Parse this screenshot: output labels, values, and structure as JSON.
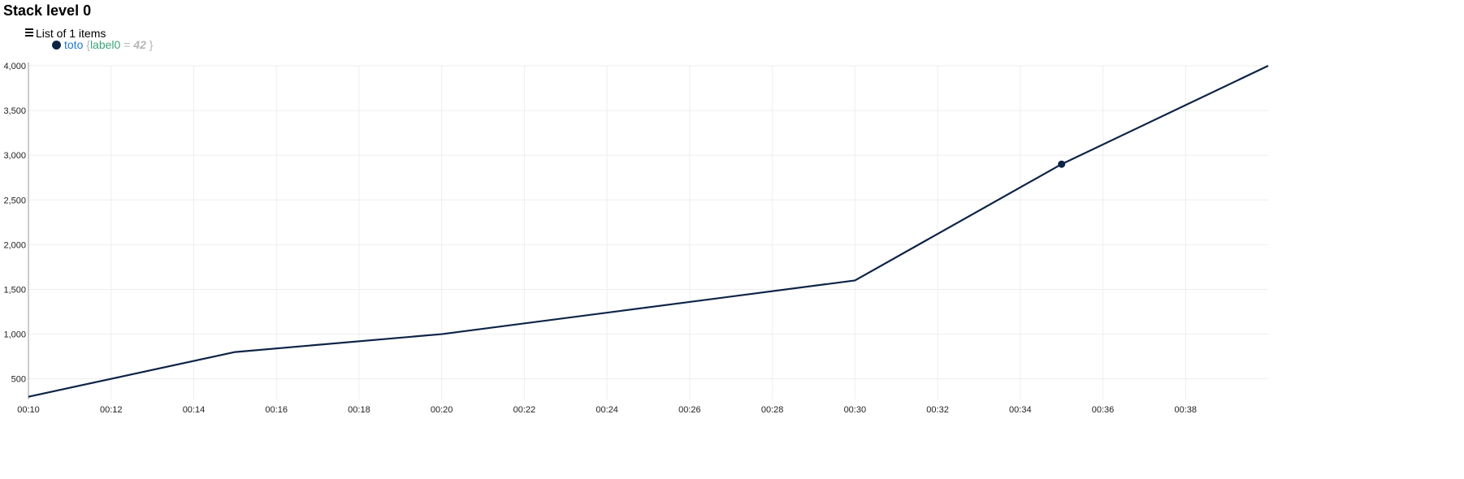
{
  "title": "Stack level 0",
  "list": {
    "header": "List of 1 items",
    "icon": "hamburger-icon"
  },
  "legend": {
    "items": [
      {
        "name": "toto",
        "label_key": "label0",
        "label_eq": "=",
        "label_value": "42",
        "brace_open": "{",
        "brace_close": "}",
        "color": "#0d2346"
      }
    ]
  },
  "chart_data": {
    "type": "line",
    "x": [
      "00:10",
      "00:15",
      "00:20",
      "00:30",
      "00:35",
      "00:40"
    ],
    "series": [
      {
        "name": "toto",
        "values": [
          300,
          800,
          1000,
          1600,
          2900,
          4000
        ],
        "color": "#0d2346"
      }
    ],
    "highlight_point": {
      "x": "00:35",
      "y": 2900
    },
    "xlim": [
      "00:10",
      "00:40"
    ],
    "ylim": [
      270,
      4000
    ],
    "xticks": [
      "00:10",
      "00:12",
      "00:14",
      "00:16",
      "00:18",
      "00:20",
      "00:22",
      "00:24",
      "00:26",
      "00:28",
      "00:30",
      "00:32",
      "00:34",
      "00:36",
      "00:38"
    ],
    "yticks": [
      500,
      1000,
      1500,
      2000,
      2500,
      3000,
      3500,
      4000
    ],
    "ytick_labels": [
      "500",
      "1,000",
      "1,500",
      "2,000",
      "2,500",
      "3,000",
      "3,500",
      "4,000"
    ],
    "grid": true,
    "grid_color": "#eeeeee",
    "axis_color": "#999999"
  }
}
